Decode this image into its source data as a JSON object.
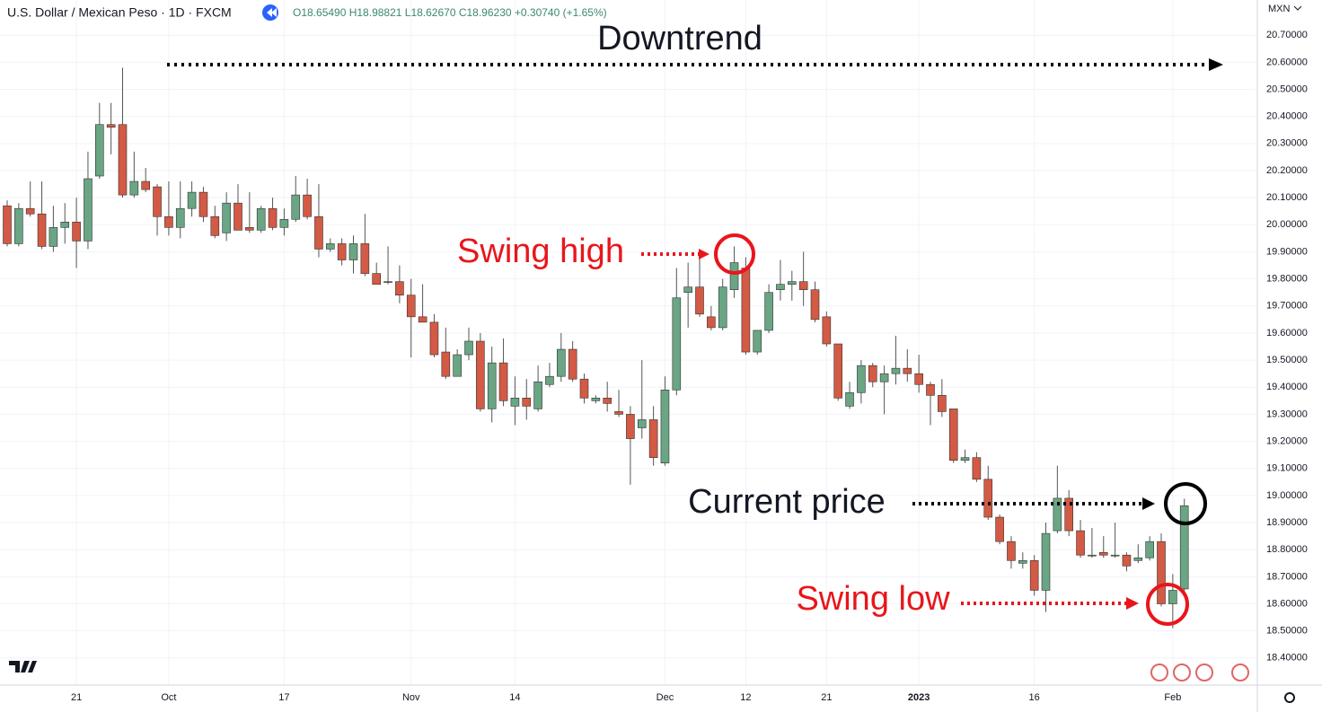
{
  "header": {
    "symbol": "U.S. Dollar / Mexican Peso · 1D · FXCM",
    "ohlc": "O18.65490 H18.98821 L18.62670 C18.96230 +0.30740 (+1.65%)",
    "currency": "MXN"
  },
  "chart_data": {
    "type": "candlestick",
    "categories": [
      null,
      null,
      null,
      null,
      null,
      null,
      "21",
      null,
      null,
      null,
      null,
      null,
      null,
      null,
      "Oct",
      null,
      null,
      null,
      null,
      null,
      null,
      null,
      null,
      null,
      "17",
      null,
      null,
      null,
      null,
      null,
      null,
      null,
      null,
      null,
      null,
      "Nov",
      null,
      null,
      null,
      null,
      null,
      null,
      null,
      null,
      "14",
      null,
      null,
      null,
      null,
      null,
      null,
      null,
      null,
      null,
      null,
      null,
      null,
      "Dec",
      null,
      null,
      null,
      null,
      null,
      null,
      "12",
      null,
      null,
      null,
      null,
      null,
      null,
      "21",
      null,
      null,
      null,
      null,
      null,
      null,
      null,
      "2023",
      null,
      null,
      null,
      null,
      null,
      null,
      null,
      null,
      null,
      "16",
      null,
      null,
      null,
      null,
      null,
      null,
      null,
      null,
      null,
      null,
      null,
      "Feb",
      null
    ],
    "open": [
      20.07,
      19.93,
      20.06,
      20.04,
      19.92,
      19.99,
      20.01,
      19.94,
      20.18,
      20.37,
      20.37,
      20.11,
      20.16,
      20.14,
      20.03,
      19.99,
      20.06,
      20.12,
      20.03,
      19.97,
      20.08,
      19.99,
      19.98,
      20.06,
      19.99,
      20.02,
      20.11,
      20.03,
      19.91,
      19.93,
      19.87,
      19.93,
      19.82,
      19.79,
      19.79,
      19.74,
      19.66,
      19.64,
      19.53,
      19.44,
      19.52,
      19.57,
      19.32,
      19.49,
      19.33,
      19.36,
      19.32,
      19.41,
      19.44,
      19.54,
      19.43,
      19.35,
      19.36,
      19.31,
      19.3,
      19.25,
      19.28,
      19.12,
      19.39,
      19.75,
      19.77,
      19.66,
      19.62,
      19.76,
      19.84,
      19.53,
      19.61,
      19.76,
      19.78,
      19.79,
      19.76,
      19.66,
      19.56,
      19.33,
      19.38,
      19.48,
      19.42,
      19.45,
      19.47,
      19.45,
      19.41,
      19.37,
      19.32,
      19.13,
      19.14,
      19.06,
      18.92,
      18.83,
      18.75,
      18.76,
      18.65,
      18.87,
      18.99,
      18.87,
      18.78,
      18.79,
      18.78,
      18.78,
      18.76,
      18.77,
      18.83,
      18.6,
      18.6549
    ],
    "high": [
      20.09,
      20.08,
      20.16,
      20.16,
      20.07,
      20.08,
      20.1,
      20.27,
      20.45,
      20.45,
      20.58,
      20.27,
      20.21,
      20.15,
      20.16,
      20.16,
      20.16,
      20.14,
      20.07,
      20.12,
      20.15,
      20.12,
      20.07,
      20.1,
      20.06,
      20.18,
      20.17,
      20.15,
      19.95,
      19.95,
      19.96,
      20.04,
      19.86,
      19.92,
      19.85,
      19.8,
      19.78,
      19.67,
      19.62,
      19.54,
      19.62,
      19.6,
      19.55,
      19.58,
      19.44,
      19.43,
      19.48,
      19.49,
      19.6,
      19.57,
      19.45,
      19.37,
      19.42,
      19.39,
      19.33,
      19.5,
      19.33,
      19.44,
      19.84,
      19.86,
      19.88,
      19.7,
      19.8,
      19.92,
      19.88,
      19.61,
      19.78,
      19.87,
      19.83,
      19.9,
      19.79,
      19.68,
      19.56,
      19.42,
      19.5,
      19.49,
      19.48,
      19.59,
      19.54,
      19.52,
      19.42,
      19.43,
      19.32,
      19.17,
      19.16,
      19.11,
      18.93,
      18.85,
      18.79,
      18.78,
      18.9,
      19.11,
      19.02,
      18.91,
      18.88,
      18.85,
      18.9,
      18.79,
      18.82,
      18.85,
      18.86,
      18.71,
      18.98821
    ],
    "low": [
      19.92,
      19.92,
      20.03,
      19.91,
      19.9,
      19.93,
      19.84,
      19.91,
      20.17,
      20.26,
      20.1,
      20.1,
      20.12,
      19.96,
      19.96,
      19.95,
      20.03,
      20.01,
      19.95,
      19.94,
      19.98,
      19.97,
      19.97,
      19.98,
      19.96,
      20.01,
      20.02,
      19.88,
      19.9,
      19.85,
      19.82,
      19.81,
      19.78,
      19.78,
      19.71,
      19.51,
      19.64,
      19.51,
      19.43,
      19.44,
      19.5,
      19.31,
      19.27,
      19.33,
      19.26,
      19.28,
      19.31,
      19.4,
      19.42,
      19.42,
      19.34,
      19.34,
      19.31,
      19.29,
      19.04,
      19.21,
      19.11,
      19.11,
      19.37,
      19.62,
      19.66,
      19.61,
      19.61,
      19.73,
      19.52,
      19.52,
      19.6,
      19.72,
      19.72,
      19.7,
      19.64,
      19.55,
      19.35,
      19.32,
      19.34,
      19.4,
      19.3,
      19.41,
      19.42,
      19.38,
      19.26,
      19.29,
      19.12,
      19.12,
      19.05,
      18.91,
      18.82,
      18.73,
      18.73,
      18.63,
      18.57,
      18.86,
      18.85,
      18.77,
      18.77,
      18.77,
      18.77,
      18.72,
      18.75,
      18.76,
      18.59,
      18.51,
      18.6267
    ],
    "close": [
      19.93,
      20.06,
      20.04,
      19.92,
      19.99,
      20.01,
      19.94,
      20.17,
      20.37,
      20.36,
      20.11,
      20.16,
      20.13,
      20.03,
      19.99,
      20.06,
      20.12,
      20.03,
      19.96,
      20.08,
      19.98,
      19.98,
      20.06,
      19.99,
      20.02,
      20.11,
      20.03,
      19.91,
      19.93,
      19.87,
      19.93,
      19.82,
      19.78,
      19.79,
      19.74,
      19.66,
      19.64,
      19.52,
      19.44,
      19.52,
      19.57,
      19.32,
      19.49,
      19.35,
      19.36,
      19.33,
      19.42,
      19.44,
      19.54,
      19.43,
      19.36,
      19.36,
      19.34,
      19.3,
      19.21,
      19.28,
      19.14,
      19.39,
      19.73,
      19.77,
      19.67,
      19.62,
      19.77,
      19.86,
      19.53,
      19.61,
      19.75,
      19.78,
      19.79,
      19.76,
      19.65,
      19.56,
      19.36,
      19.38,
      19.48,
      19.42,
      19.45,
      19.47,
      19.45,
      19.41,
      19.37,
      19.31,
      19.13,
      19.14,
      19.06,
      18.92,
      18.83,
      18.76,
      18.76,
      18.65,
      18.86,
      18.99,
      18.87,
      18.78,
      18.78,
      18.78,
      18.78,
      18.74,
      18.77,
      18.83,
      18.6,
      18.65,
      18.9623
    ],
    "up_color": "#6aa584",
    "down_color": "#d35a44",
    "ylim": [
      18.3,
      20.83
    ],
    "yticks": [
      {
        "value": 18.4,
        "label": "18.40000"
      },
      {
        "value": 18.5,
        "label": "18.50000"
      },
      {
        "value": 18.6,
        "label": "18.60000"
      },
      {
        "value": 18.7,
        "label": "18.70000"
      },
      {
        "value": 18.8,
        "label": "18.80000"
      },
      {
        "value": 18.9,
        "label": "18.90000"
      },
      {
        "value": 19.0,
        "label": "19.00000"
      },
      {
        "value": 19.1,
        "label": "19.10000"
      },
      {
        "value": 19.2,
        "label": "19.20000"
      },
      {
        "value": 19.3,
        "label": "19.30000"
      },
      {
        "value": 19.4,
        "label": "19.40000"
      },
      {
        "value": 19.5,
        "label": "19.50000"
      },
      {
        "value": 19.6,
        "label": "19.60000"
      },
      {
        "value": 19.7,
        "label": "19.70000"
      },
      {
        "value": 19.8,
        "label": "19.80000"
      },
      {
        "value": 19.9,
        "label": "19.90000"
      },
      {
        "value": 20.0,
        "label": "20.00000"
      },
      {
        "value": 20.1,
        "label": "20.10000"
      },
      {
        "value": 20.2,
        "label": "20.20000"
      },
      {
        "value": 20.3,
        "label": "20.30000"
      },
      {
        "value": 20.4,
        "label": "20.40000"
      },
      {
        "value": 20.5,
        "label": "20.50000"
      },
      {
        "value": 20.6,
        "label": "20.60000"
      },
      {
        "value": 20.7,
        "label": "20.70000"
      }
    ],
    "grid": true,
    "annotations": [
      {
        "text": "Downtrend",
        "color": "#000000"
      },
      {
        "text": "Swing high",
        "color": "#e8161b"
      },
      {
        "text": "Current price",
        "color": "#000000"
      },
      {
        "text": "Swing low",
        "color": "#e8161b"
      }
    ]
  }
}
